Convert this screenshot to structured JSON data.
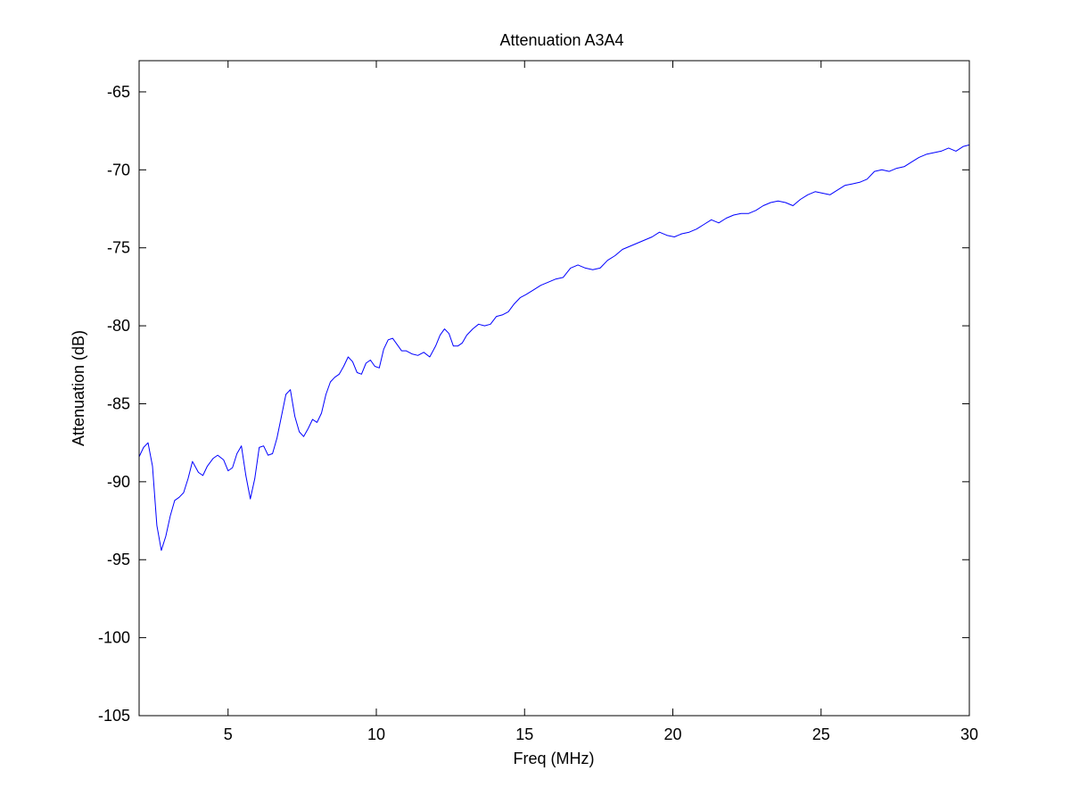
{
  "chart_data": {
    "type": "line",
    "title": "Attenuation A3A4",
    "xlabel": "Freq (MHz)",
    "ylabel": "Attenuation (dB)",
    "xlim": [
      2,
      30
    ],
    "ylim": [
      -105,
      -63
    ],
    "xticks": [
      5,
      10,
      15,
      20,
      25,
      30
    ],
    "yticks": [
      -105,
      -100,
      -95,
      -90,
      -85,
      -80,
      -75,
      -70,
      -65
    ],
    "xtick_labels": [
      "5",
      "10",
      "15",
      "20",
      "25",
      "30"
    ],
    "ytick_labels": [
      "-105",
      "-100",
      "-95",
      "-90",
      "-85",
      "-80",
      "-75",
      "-70",
      "-65"
    ],
    "grid": false,
    "line_color": "#0000ff",
    "series": [
      {
        "x": [
          2.0,
          2.15,
          2.3,
          2.45,
          2.6,
          2.75,
          2.9,
          3.05,
          3.2,
          3.35,
          3.5,
          3.65,
          3.8,
          4.0,
          4.15,
          4.3,
          4.5,
          4.65,
          4.85,
          5.0,
          5.15,
          5.3,
          5.45,
          5.6,
          5.75,
          5.9,
          6.05,
          6.2,
          6.35,
          6.5,
          6.65,
          6.8,
          6.95,
          7.1,
          7.25,
          7.4,
          7.55,
          7.7,
          7.85,
          8.0,
          8.15,
          8.3,
          8.45,
          8.6,
          8.75,
          8.9,
          9.05,
          9.2,
          9.35,
          9.5,
          9.65,
          9.8,
          9.95,
          10.1,
          10.25,
          10.4,
          10.55,
          10.7,
          10.85,
          11.0,
          11.2,
          11.4,
          11.6,
          11.8,
          12.0,
          12.15,
          12.3,
          12.45,
          12.6,
          12.75,
          12.9,
          13.05,
          13.25,
          13.45,
          13.65,
          13.85,
          14.05,
          14.25,
          14.45,
          14.65,
          14.85,
          15.05,
          15.3,
          15.55,
          15.8,
          16.05,
          16.3,
          16.55,
          16.8,
          17.05,
          17.3,
          17.55,
          17.8,
          18.05,
          18.3,
          18.55,
          18.8,
          19.05,
          19.3,
          19.55,
          19.8,
          20.05,
          20.3,
          20.55,
          20.8,
          21.05,
          21.3,
          21.55,
          21.8,
          22.05,
          22.3,
          22.55,
          22.8,
          23.05,
          23.3,
          23.55,
          23.8,
          24.05,
          24.3,
          24.55,
          24.8,
          25.05,
          25.3,
          25.55,
          25.8,
          26.05,
          26.3,
          26.55,
          26.8,
          27.05,
          27.3,
          27.55,
          27.8,
          28.05,
          28.3,
          28.55,
          28.8,
          29.05,
          29.3,
          29.55,
          29.8,
          30.0
        ],
        "y": [
          -88.4,
          -87.8,
          -87.5,
          -89.0,
          -92.8,
          -94.4,
          -93.5,
          -92.2,
          -91.2,
          -91.0,
          -90.7,
          -89.8,
          -88.7,
          -89.4,
          -89.6,
          -89.0,
          -88.5,
          -88.3,
          -88.6,
          -89.3,
          -89.1,
          -88.2,
          -87.7,
          -89.6,
          -91.1,
          -89.8,
          -87.8,
          -87.7,
          -88.3,
          -88.2,
          -87.2,
          -85.8,
          -84.4,
          -84.1,
          -85.8,
          -86.8,
          -87.1,
          -86.6,
          -86.0,
          -86.2,
          -85.6,
          -84.4,
          -83.6,
          -83.3,
          -83.1,
          -82.6,
          -82.0,
          -82.3,
          -83.0,
          -83.1,
          -82.4,
          -82.2,
          -82.6,
          -82.7,
          -81.5,
          -80.9,
          -80.8,
          -81.2,
          -81.6,
          -81.6,
          -81.8,
          -81.9,
          -81.7,
          -82.0,
          -81.3,
          -80.6,
          -80.2,
          -80.5,
          -81.3,
          -81.3,
          -81.1,
          -80.6,
          -80.2,
          -79.9,
          -80.0,
          -79.9,
          -79.4,
          -79.3,
          -79.1,
          -78.6,
          -78.2,
          -78.0,
          -77.7,
          -77.4,
          -77.2,
          -77.0,
          -76.9,
          -76.3,
          -76.1,
          -76.3,
          -76.4,
          -76.3,
          -75.8,
          -75.5,
          -75.1,
          -74.9,
          -74.7,
          -74.5,
          -74.3,
          -74.0,
          -74.2,
          -74.3,
          -74.1,
          -74.0,
          -73.8,
          -73.5,
          -73.2,
          -73.4,
          -73.1,
          -72.9,
          -72.8,
          -72.8,
          -72.6,
          -72.3,
          -72.1,
          -72.0,
          -72.1,
          -72.3,
          -71.9,
          -71.6,
          -71.4,
          -71.5,
          -71.6,
          -71.3,
          -71.0,
          -70.9,
          -70.8,
          -70.6,
          -70.1,
          -70.0,
          -70.1,
          -69.9,
          -69.8,
          -69.5,
          -69.2,
          -69.0,
          -68.9,
          -68.8,
          -68.6,
          -68.8,
          -68.5,
          -68.4
        ]
      }
    ]
  }
}
